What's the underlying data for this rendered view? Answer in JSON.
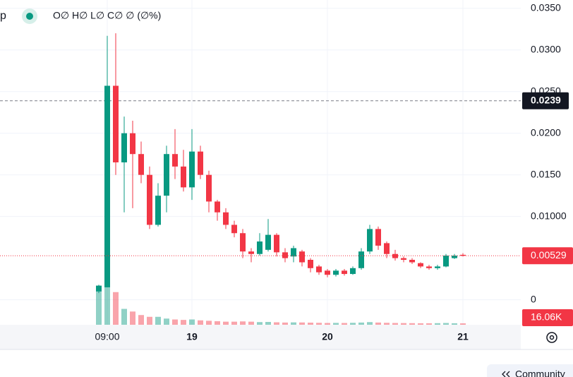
{
  "chart_data": {
    "type": "candlestick",
    "title": "p",
    "legend_text": "O∅ H∅ L∅ C∅ ∅ (∅%)",
    "x": [
      7.5,
      9,
      10.5,
      12,
      13.5,
      15,
      16.5,
      18,
      19.5,
      21,
      22.5,
      24,
      25.5,
      27,
      28.5,
      30,
      31.5,
      33,
      34.5,
      36,
      37.5,
      39,
      40.5,
      42,
      43.5,
      45,
      46.5,
      48,
      49.5,
      51,
      52.5,
      54,
      55.5,
      57,
      58.5,
      60,
      61.5,
      63,
      64.5,
      66,
      67.5,
      69,
      70.5,
      72
    ],
    "open": [
      0.001,
      0.0015,
      0.0257,
      0.0165,
      0.02,
      0.0175,
      0.015,
      0.009,
      0.0125,
      0.0175,
      0.016,
      0.0135,
      0.0178,
      0.015,
      0.0118,
      0.0105,
      0.009,
      0.008,
      0.0058,
      0.0055,
      0.006,
      0.0078,
      0.0057,
      0.0052,
      0.0058,
      0.0048,
      0.004,
      0.0035,
      0.003,
      0.0035,
      0.0031,
      0.0038,
      0.0058,
      0.0085,
      0.0068,
      0.0055,
      0.005,
      0.0048,
      0.0044,
      0.004,
      0.0038,
      0.004,
      0.005,
      0.0054
    ],
    "high": [
      0.0018,
      0.0317,
      0.032,
      0.022,
      0.0215,
      0.019,
      0.016,
      0.014,
      0.0185,
      0.0205,
      0.018,
      0.0205,
      0.0185,
      0.0155,
      0.012,
      0.011,
      0.0095,
      0.0085,
      0.0062,
      0.008,
      0.0097,
      0.008,
      0.0062,
      0.0065,
      0.006,
      0.005,
      0.0042,
      0.0037,
      0.0037,
      0.0037,
      0.004,
      0.0062,
      0.009,
      0.0088,
      0.007,
      0.006,
      0.0052,
      0.005,
      0.0045,
      0.0042,
      0.0042,
      0.0055,
      0.0055,
      0.0056
    ],
    "low": [
      0.0008,
      0.0015,
      0.015,
      0.0105,
      0.011,
      0.014,
      0.0085,
      0.0088,
      0.0105,
      0.0145,
      0.013,
      0.012,
      0.0145,
      0.0105,
      0.0095,
      0.0085,
      0.0075,
      0.005,
      0.0045,
      0.0053,
      0.0058,
      0.0052,
      0.0045,
      0.0045,
      0.004,
      0.0033,
      0.003,
      0.0027,
      0.0028,
      0.0029,
      0.003,
      0.0036,
      0.0055,
      0.006,
      0.005,
      0.0047,
      0.0045,
      0.0043,
      0.0038,
      0.0036,
      0.0036,
      0.0039,
      0.0049,
      0.0052
    ],
    "close": [
      0.0017,
      0.0257,
      0.0165,
      0.02,
      0.0175,
      0.015,
      0.009,
      0.0125,
      0.0175,
      0.016,
      0.0135,
      0.0178,
      0.015,
      0.0118,
      0.0105,
      0.009,
      0.008,
      0.0058,
      0.0055,
      0.007,
      0.0078,
      0.0057,
      0.005,
      0.0062,
      0.0045,
      0.0038,
      0.0033,
      0.003,
      0.0035,
      0.0031,
      0.0038,
      0.0058,
      0.0085,
      0.0065,
      0.0055,
      0.005,
      0.0048,
      0.0045,
      0.004,
      0.0038,
      0.004,
      0.0053,
      0.0053,
      0.00529
    ],
    "volume": [
      440000,
      760000,
      370000,
      180000,
      150000,
      110000,
      90000,
      90000,
      70000,
      60000,
      55000,
      60000,
      50000,
      45000,
      40000,
      35000,
      35000,
      38000,
      35000,
      30000,
      32000,
      28000,
      25000,
      27000,
      26000,
      24000,
      22000,
      20000,
      21000,
      20000,
      22000,
      25000,
      30000,
      25000,
      22000,
      20000,
      19000,
      18000,
      17000,
      17000,
      18000,
      20000,
      17000,
      16060
    ],
    "last_volume": {
      "value": 16060,
      "label": "16.06K"
    },
    "price_line": 0.0239,
    "up_color": "#089981",
    "down_color": "#f23645",
    "xlim": [
      -10,
      82.25
    ],
    "ylim": [
      -0.003,
      0.036
    ],
    "xticks": [
      {
        "value": 9,
        "label": "09:00"
      },
      {
        "value": 24,
        "label": "19"
      },
      {
        "value": 48,
        "label": "20"
      },
      {
        "value": 72,
        "label": "21"
      }
    ],
    "yticks": [
      {
        "value": 0.035,
        "label": "0.0350"
      },
      {
        "value": 0.03,
        "label": "0.0300"
      },
      {
        "value": 0.025,
        "label": "0.0250"
      },
      {
        "value": 0.02,
        "label": "0.0200"
      },
      {
        "value": 0.015,
        "label": "0.0150"
      },
      {
        "value": 0.01,
        "label": "0.01000"
      },
      0
    ],
    "grid": true,
    "community_button": "Community"
  }
}
